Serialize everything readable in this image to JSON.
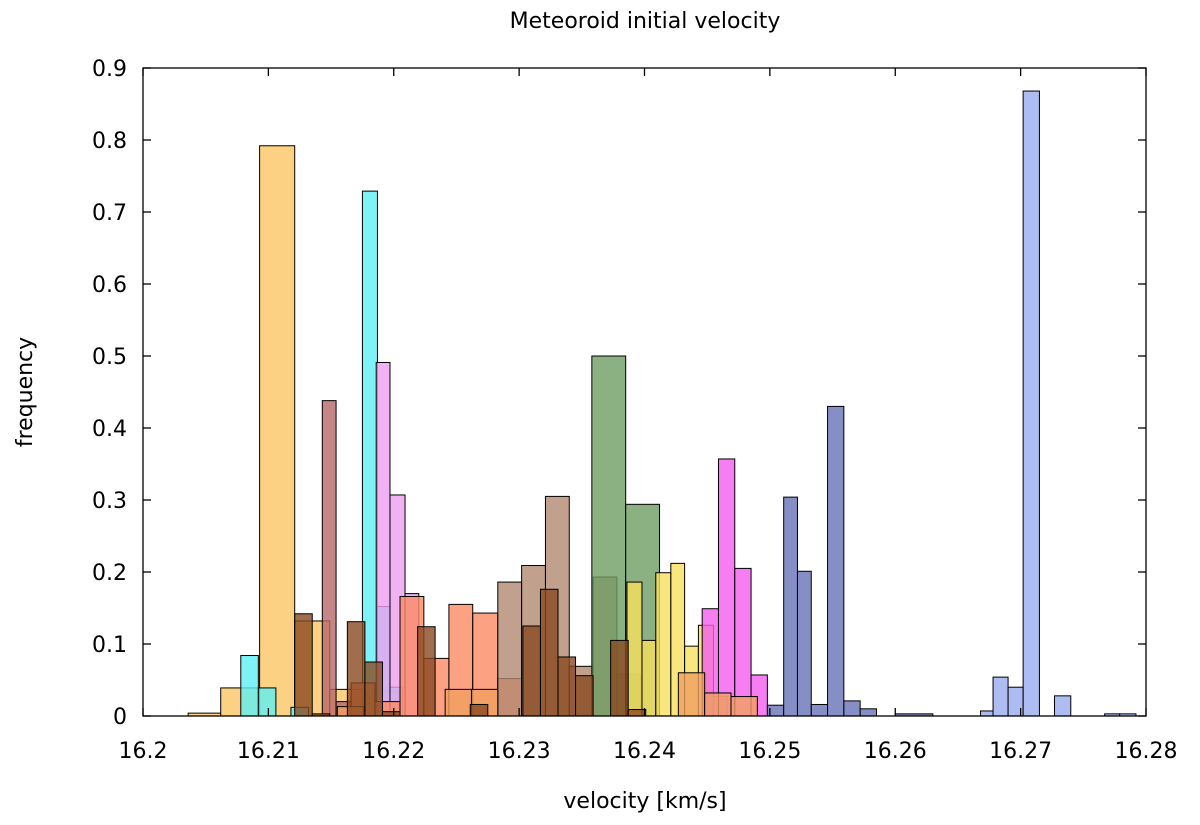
{
  "chart_data": {
    "type": "bar",
    "title": "Meteoroid initial velocity",
    "xlabel": "velocity [km/s]",
    "ylabel": "frequency",
    "xlim": [
      16.2,
      16.28
    ],
    "ylim": [
      0,
      0.9
    ],
    "xticks": [
      16.2,
      16.21,
      16.22,
      16.23,
      16.24,
      16.25,
      16.26,
      16.27,
      16.28
    ],
    "xtick_labels": [
      "16.2",
      "16.21",
      "16.22",
      "16.23",
      "16.24",
      "16.25",
      "16.26",
      "16.27",
      "16.28"
    ],
    "yticks": [
      0,
      0.1,
      0.2,
      0.3,
      0.4,
      0.5,
      0.6,
      0.7,
      0.8,
      0.9
    ],
    "ytick_labels": [
      "0",
      "0.1",
      "0.2",
      "0.3",
      "0.4",
      "0.5",
      "0.6",
      "0.7",
      "0.8",
      "0.9"
    ],
    "grid": false,
    "legend": "none",
    "series": [
      {
        "name": "light orange",
        "color": "#fcc664",
        "bins": [
          [
            16.2036,
            16.2062,
            0.004
          ],
          [
            16.2062,
            16.2093,
            0.039
          ],
          [
            16.2093,
            16.2121,
            0.792
          ],
          [
            16.2121,
            16.2149,
            0.132
          ],
          [
            16.2149,
            16.2176,
            0.037
          ],
          [
            16.2176,
            16.2204,
            0.035
          ]
        ]
      },
      {
        "name": "cyan",
        "color": "#5ef0f5",
        "bins": [
          [
            16.2078,
            16.2092,
            0.084
          ],
          [
            16.2092,
            16.2106,
            0.039
          ],
          [
            16.2118,
            16.2132,
            0.012
          ],
          [
            16.2175,
            16.2187,
            0.729
          ],
          [
            16.2187,
            16.2197,
            0.152
          ],
          [
            16.2197,
            16.2207,
            0.04
          ]
        ]
      },
      {
        "name": "violet",
        "color": "#ee9ff0",
        "bins": [
          [
            16.2186,
            16.2197,
            0.491
          ],
          [
            16.2197,
            16.2209,
            0.307
          ],
          [
            16.2209,
            16.222,
            0.17
          ]
        ]
      },
      {
        "name": "salmon",
        "color": "#fc8a64",
        "bins": [
          [
            16.2166,
            16.2185,
            0.046
          ],
          [
            16.2185,
            16.2205,
            0.02
          ],
          [
            16.2205,
            16.2224,
            0.166
          ],
          [
            16.2224,
            16.2244,
            0.08
          ],
          [
            16.2244,
            16.2263,
            0.155
          ],
          [
            16.2263,
            16.2283,
            0.143
          ],
          [
            16.2283,
            16.2302,
            0.052
          ]
        ]
      },
      {
        "name": "rosy brown",
        "color": "#b8686a",
        "bins": [
          [
            16.2143,
            16.2154,
            0.438
          ],
          [
            16.2154,
            16.2166,
            0.02
          ]
        ]
      },
      {
        "name": "tan brown",
        "color": "#b28a70",
        "bins": [
          [
            16.2283,
            16.2302,
            0.186
          ],
          [
            16.2302,
            16.2321,
            0.209
          ],
          [
            16.2321,
            16.234,
            0.305
          ],
          [
            16.234,
            16.2359,
            0.069
          ],
          [
            16.2359,
            16.2378,
            0.193
          ],
          [
            16.2378,
            16.2397,
            0.058
          ]
        ]
      },
      {
        "name": "green",
        "color": "#6e9e64",
        "bins": [
          [
            16.2358,
            16.2385,
            0.5
          ],
          [
            16.2385,
            16.2412,
            0.294
          ]
        ]
      },
      {
        "name": "yellow",
        "color": "#f8e05c",
        "bins": [
          [
            16.2386,
            16.2398,
            0.186
          ],
          [
            16.2398,
            16.2409,
            0.105
          ],
          [
            16.2409,
            16.2421,
            0.199
          ],
          [
            16.2421,
            16.2432,
            0.212
          ],
          [
            16.2432,
            16.2443,
            0.097
          ],
          [
            16.2443,
            16.2455,
            0.126
          ],
          [
            16.2455,
            16.2466,
            0.027
          ]
        ]
      },
      {
        "name": "magenta",
        "color": "#f55cf0",
        "bins": [
          [
            16.2446,
            16.2459,
            0.149
          ],
          [
            16.2459,
            16.2472,
            0.357
          ],
          [
            16.2472,
            16.2485,
            0.205
          ],
          [
            16.2485,
            16.2498,
            0.057
          ]
        ]
      },
      {
        "name": "slate blue",
        "color": "#6673b8",
        "bins": [
          [
            16.2498,
            16.2511,
            0.015
          ],
          [
            16.2511,
            16.2522,
            0.304
          ],
          [
            16.2522,
            16.2533,
            0.201
          ],
          [
            16.2533,
            16.2546,
            0.016
          ],
          [
            16.2546,
            16.2559,
            0.43
          ],
          [
            16.2559,
            16.2572,
            0.021
          ],
          [
            16.2572,
            16.2585,
            0.01
          ],
          [
            16.26,
            16.263,
            0.003
          ]
        ]
      },
      {
        "name": "cornflower",
        "color": "#98abef",
        "bins": [
          [
            16.2668,
            16.2678,
            0.007
          ],
          [
            16.2678,
            16.269,
            0.054
          ],
          [
            16.269,
            16.2702,
            0.04
          ],
          [
            16.2702,
            16.2715,
            0.868
          ],
          [
            16.2727,
            16.274,
            0.028
          ],
          [
            16.2767,
            16.2779,
            0.003
          ],
          [
            16.2779,
            16.2792,
            0.003
          ]
        ]
      },
      {
        "name": "orange overlay",
        "color": "#f0a060",
        "bins": [
          [
            16.2155,
            16.2176,
            0.013
          ],
          [
            16.2241,
            16.2262,
            0.037
          ],
          [
            16.2262,
            16.2283,
            0.037
          ],
          [
            16.2427,
            16.2448,
            0.06
          ],
          [
            16.2448,
            16.2469,
            0.032
          ],
          [
            16.2469,
            16.249,
            0.027
          ]
        ]
      },
      {
        "name": "dark brown",
        "color": "#8a4a20",
        "bins": [
          [
            16.2121,
            16.2135,
            0.142
          ],
          [
            16.2135,
            16.2149,
            0.003
          ],
          [
            16.2163,
            16.2177,
            0.131
          ],
          [
            16.2177,
            16.2191,
            0.075
          ],
          [
            16.2191,
            16.2205,
            0.006
          ],
          [
            16.2219,
            16.2233,
            0.124
          ],
          [
            16.2261,
            16.2275,
            0.016
          ],
          [
            16.2303,
            16.2317,
            0.125
          ],
          [
            16.2317,
            16.2331,
            0.176
          ],
          [
            16.2331,
            16.2345,
            0.082
          ],
          [
            16.2345,
            16.2359,
            0.056
          ],
          [
            16.2373,
            16.2387,
            0.105
          ],
          [
            16.2387,
            16.2401,
            0.009
          ]
        ]
      }
    ]
  }
}
